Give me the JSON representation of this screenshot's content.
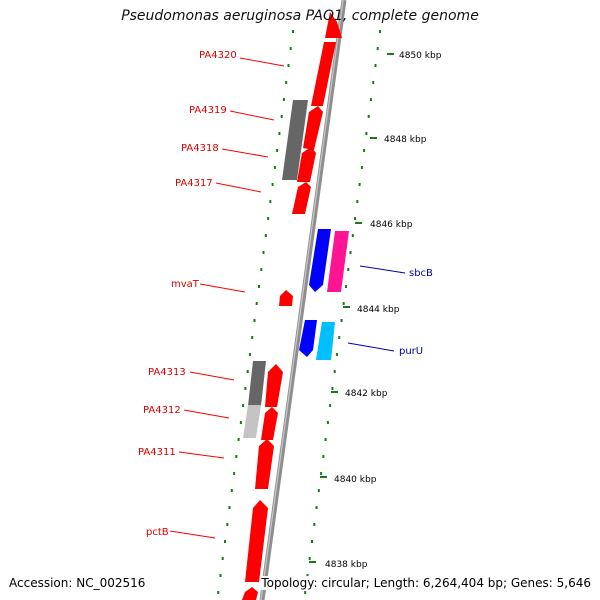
{
  "title": "Pseudomonas aeruginosa PAO1, complete genome",
  "footer": {
    "accession": "Accession: NC_002516",
    "summary": "Topology: circular; Length: 6,264,404 bp; Genes: 5,646"
  },
  "scale_ticks": [
    {
      "label": "4850 kbp",
      "kbp": 4850
    },
    {
      "label": "4848 kbp",
      "kbp": 4848
    },
    {
      "label": "4846 kbp",
      "kbp": 4846
    },
    {
      "label": "4844 kbp",
      "kbp": 4844
    },
    {
      "label": "4842 kbp",
      "kbp": 4842
    },
    {
      "label": "4840 kbp",
      "kbp": 4840
    },
    {
      "label": "4838 kbp",
      "kbp": 4838
    }
  ],
  "genes_left": [
    {
      "label": "PA4320",
      "color": "#dd0000"
    },
    {
      "label": "PA4319",
      "color": "#dd0000"
    },
    {
      "label": "PA4318",
      "color": "#dd0000"
    },
    {
      "label": "PA4317",
      "color": "#dd0000"
    },
    {
      "label": "mvaT",
      "color": "#dd0000"
    },
    {
      "label": "PA4313",
      "color": "#dd0000"
    },
    {
      "label": "PA4312",
      "color": "#dd0000"
    },
    {
      "label": "PA4311",
      "color": "#dd0000"
    },
    {
      "label": "pctB",
      "color": "#dd0000"
    }
  ],
  "genes_right": [
    {
      "label": "sbcB",
      "color": "#0000aa"
    },
    {
      "label": "purU",
      "color": "#0000aa"
    }
  ],
  "colors": {
    "forward_cds": "#ff0000",
    "reverse_cds": "#0000ff",
    "gray_feature": "#707070",
    "light_gray_feature": "#c0c0c0",
    "magenta_feature": "#ff1493",
    "cyan_feature": "#00bfff",
    "backbone": "#909090",
    "tick": "#1a7a1a"
  }
}
